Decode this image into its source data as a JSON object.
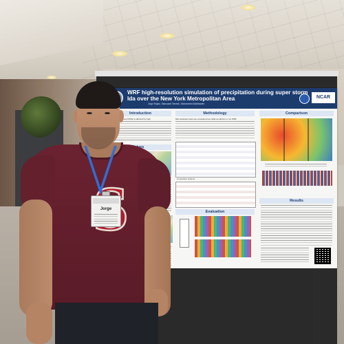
{
  "poster": {
    "title_line1": "WRF high-resolution simulation of precipitation during super storm",
    "title_line2": "Ida over the New York Metropolitan Area",
    "authors": "Jorge Rojas¹, Marouane Temimi¹, Mohammed Abdelkader¹",
    "affiliation": "Stevens Institute of Technology email: jrojasgo@stevens.edu",
    "org_logo": "NCAR",
    "sections": {
      "introduction": "Introduction",
      "methodology": "Methodology",
      "comparison": "Comparison",
      "evaluation": "Evaluation",
      "results": "Results",
      "objectives": "ives"
    },
    "intro_text": "Metropolitan Area (NYMA) is affected by high",
    "method_text": "Mid-resolution land use considered as initial conditions to run WRF",
    "table_labels": {
      "rain_gauges": "Precipitation",
      "schemes": "Convection scheme"
    }
  },
  "badge": {
    "name": "Jorge"
  },
  "shirt_letter": "S",
  "colors": {
    "poster_header": "#1d3c6e",
    "shirt": "#6b2230",
    "lanyard": "#2f6fd6",
    "letter_red": "#b01c2e"
  },
  "icons": [
    "ceiling-light-icon",
    "nsf-logo-icon",
    "ncar-logo-icon",
    "qr-code-icon",
    "stevens-seal-icon"
  ]
}
